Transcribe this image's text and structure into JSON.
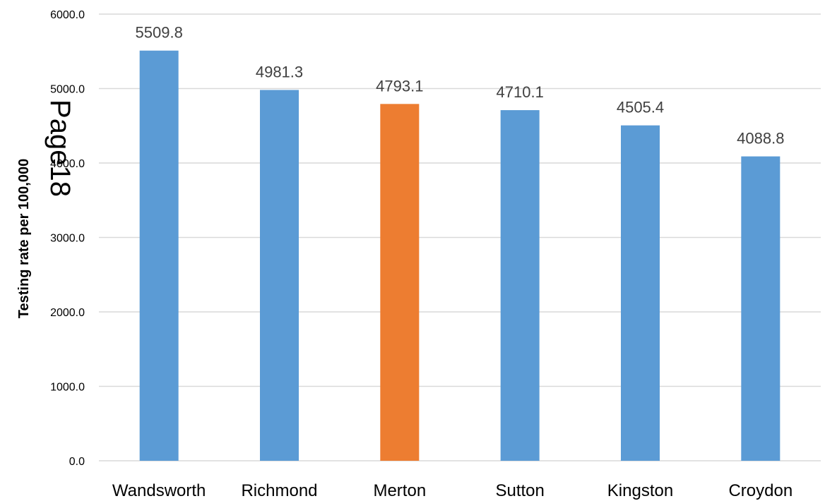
{
  "chart_data": {
    "type": "bar",
    "title": "",
    "xlabel": "",
    "ylabel": "Testing rate per 100,000",
    "ylim": [
      0,
      6000
    ],
    "yticks": [
      "0.0",
      "1000.0",
      "2000.0",
      "3000.0",
      "4000.0",
      "5000.0",
      "6000.0"
    ],
    "grid": true,
    "legend": "none",
    "categories": [
      "Wandsworth",
      "Richmond",
      "Merton",
      "Sutton",
      "Kingston",
      "Croydon"
    ],
    "values": [
      5509.8,
      4981.3,
      4793.1,
      4710.1,
      4505.4,
      4088.8
    ],
    "data_labels": [
      "5509.8",
      "4981.3",
      "4793.1",
      "4710.1",
      "4505.4",
      "4088.8"
    ],
    "colors": {
      "default_bar": "#5B9BD5",
      "highlight_bar": "#ED7D31",
      "gridline": "#D9D9D9"
    },
    "highlight_category": "Merton"
  },
  "watermark": "Page18"
}
